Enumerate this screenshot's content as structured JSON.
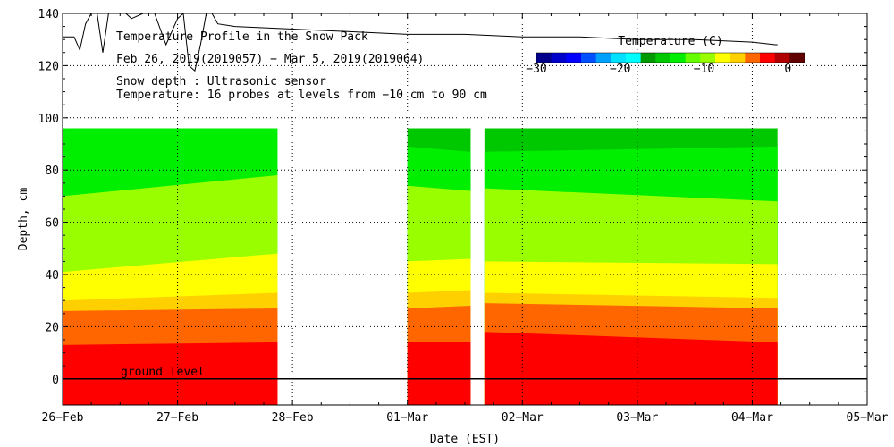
{
  "chart_data": {
    "type": "heatmap",
    "title": "Temperature Profile in the Snow Pack",
    "subtitle": "Feb 26, 2019(2019057) − Mar  5, 2019(2019064)",
    "notes": [
      "Snow depth : Ultrasonic sensor",
      "Temperature: 16 probes at levels from −10 cm to 90 cm"
    ],
    "xlabel": "Date (EST)",
    "ylabel": "Depth, cm",
    "xlim_days": [
      0,
      7
    ],
    "ylim": [
      -10,
      140
    ],
    "x_ticks": [
      "26−Feb",
      "27−Feb",
      "28−Feb",
      "01−Mar",
      "02−Mar",
      "03−Mar",
      "04−Mar",
      "05−Mar"
    ],
    "y_ticks": [
      0,
      20,
      40,
      60,
      80,
      100,
      120,
      140
    ],
    "ground_label": "ground level",
    "colorbar": {
      "title": "Temperature (C)",
      "range": [
        -30,
        2
      ],
      "tick_values": [
        -30,
        -20,
        -10,
        0
      ],
      "tick_labels": [
        "−30",
        "−20",
        "−10",
        "0"
      ],
      "colors": [
        "#00008b",
        "#0000cd",
        "#0000ff",
        "#0050ff",
        "#00a0ff",
        "#00e0ff",
        "#00ffff",
        "#009900",
        "#00c800",
        "#00ee00",
        "#66ff00",
        "#99ff00",
        "#ffff00",
        "#ffd000",
        "#ff6600",
        "#ff0000",
        "#b00000",
        "#600000"
      ]
    },
    "temperature_profile_top_cm": 96,
    "segments": [
      {
        "start_day": 0.0,
        "end_day": 1.87,
        "layers": [
          {
            "temp_c": -2.0,
            "color": "#ff0000",
            "top_start": 13,
            "top_end": 14
          },
          {
            "temp_c": -3.0,
            "color": "#ff6600",
            "top_start": 26,
            "top_end": 27
          },
          {
            "temp_c": -4.0,
            "color": "#ffd000",
            "top_start": 30,
            "top_end": 33
          },
          {
            "temp_c": -5.0,
            "color": "#ffff00",
            "top_start": 41,
            "top_end": 48
          },
          {
            "temp_c": -7.0,
            "color": "#99ff00",
            "top_start": 70,
            "top_end": 78
          },
          {
            "temp_c": -10.0,
            "color": "#00ee00",
            "top_start": 96,
            "top_end": 96
          }
        ]
      },
      {
        "start_day": 3.0,
        "end_day": 3.55,
        "layers": [
          {
            "temp_c": -2.0,
            "color": "#ff0000",
            "top_start": 14,
            "top_end": 14
          },
          {
            "temp_c": -3.0,
            "color": "#ff6600",
            "top_start": 27,
            "top_end": 28
          },
          {
            "temp_c": -4.0,
            "color": "#ffd000",
            "top_start": 33,
            "top_end": 34
          },
          {
            "temp_c": -5.0,
            "color": "#ffff00",
            "top_start": 45,
            "top_end": 46
          },
          {
            "temp_c": -7.0,
            "color": "#99ff00",
            "top_start": 74,
            "top_end": 72
          },
          {
            "temp_c": -10.0,
            "color": "#00ee00",
            "top_start": 89,
            "top_end": 87
          },
          {
            "temp_c": -12.0,
            "color": "#00c800",
            "top_start": 96,
            "top_end": 96
          }
        ]
      },
      {
        "start_day": 3.67,
        "end_day": 6.22,
        "layers": [
          {
            "temp_c": -2.0,
            "color": "#ff0000",
            "top_start": 18,
            "top_end": 14
          },
          {
            "temp_c": -3.0,
            "color": "#ff6600",
            "top_start": 29,
            "top_end": 27
          },
          {
            "temp_c": -4.0,
            "color": "#ffd000",
            "top_start": 33,
            "top_end": 31
          },
          {
            "temp_c": -5.0,
            "color": "#ffff00",
            "top_start": 45,
            "top_end": 44
          },
          {
            "temp_c": -7.0,
            "color": "#99ff00",
            "top_start": 73,
            "top_end": 68
          },
          {
            "temp_c": -10.0,
            "color": "#00ee00",
            "top_start": 87,
            "top_end": 89
          },
          {
            "temp_c": -12.0,
            "color": "#00c800",
            "top_start": 96,
            "top_end": 96
          }
        ]
      }
    ],
    "snow_depth_series": {
      "name": "Snow depth",
      "x_days": [
        0.0,
        0.1,
        0.15,
        0.2,
        0.25,
        0.3,
        0.35,
        0.4,
        0.45,
        0.5,
        0.55,
        0.6,
        0.7,
        0.8,
        0.9,
        1.0,
        1.05,
        1.1,
        1.15,
        1.2,
        1.25,
        1.3,
        1.35,
        1.5,
        2.0,
        2.5,
        3.0,
        3.5,
        4.0,
        4.5,
        5.0,
        5.5,
        6.0,
        6.2,
        6.22
      ],
      "values": [
        131,
        131,
        126,
        136,
        142,
        142,
        125,
        141,
        142,
        142,
        142,
        138,
        140,
        142,
        128,
        138,
        140,
        120,
        118,
        128,
        142,
        141,
        136,
        135,
        134,
        133,
        132,
        132,
        131,
        131,
        130,
        130,
        129,
        128,
        128
      ]
    }
  }
}
